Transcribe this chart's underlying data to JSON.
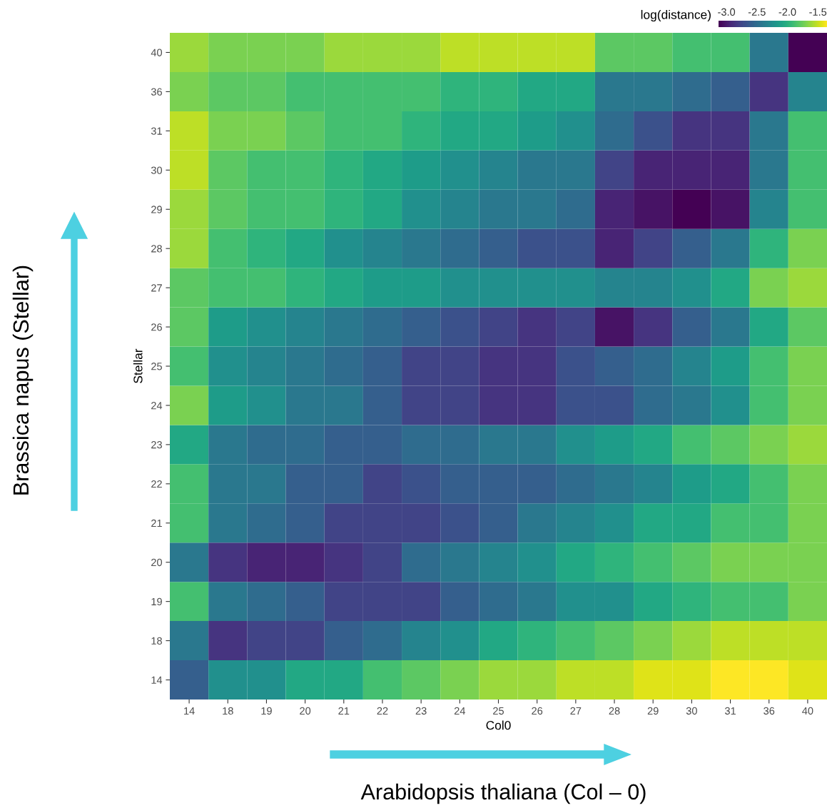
{
  "chart_data": {
    "type": "heatmap",
    "xlabel": "Col0",
    "ylabel": "Stellar",
    "clabel": "log(distance)",
    "categories": [
      "14",
      "18",
      "19",
      "20",
      "21",
      "22",
      "23",
      "24",
      "25",
      "26",
      "27",
      "28",
      "29",
      "30",
      "31",
      "36",
      "40"
    ],
    "y_categories": [
      "40",
      "36",
      "31",
      "30",
      "29",
      "28",
      "27",
      "26",
      "25",
      "24",
      "23",
      "22",
      "21",
      "20",
      "19",
      "18",
      "14"
    ],
    "cells": [
      [
        -1.62,
        -1.71,
        -1.71,
        -1.71,
        -1.62,
        -1.62,
        -1.62,
        -1.53,
        -1.53,
        -1.53,
        -1.53,
        -1.8,
        -1.8,
        -1.88,
        -1.88,
        -2.42,
        -3.13
      ],
      [
        -1.71,
        -1.8,
        -1.8,
        -1.88,
        -1.88,
        -1.88,
        -1.88,
        -1.97,
        -1.97,
        -2.06,
        -2.06,
        -2.42,
        -2.42,
        -2.51,
        -2.6,
        -2.86,
        -2.33
      ],
      [
        -1.53,
        -1.71,
        -1.71,
        -1.8,
        -1.88,
        -1.88,
        -1.97,
        -2.06,
        -2.06,
        -2.15,
        -2.24,
        -2.51,
        -2.69,
        -2.86,
        -2.86,
        -2.42,
        -1.88
      ],
      [
        -1.53,
        -1.8,
        -1.88,
        -1.88,
        -1.97,
        -2.06,
        -2.15,
        -2.24,
        -2.33,
        -2.42,
        -2.42,
        -2.77,
        -2.95,
        -2.95,
        -2.95,
        -2.42,
        -1.88
      ],
      [
        -1.62,
        -1.8,
        -1.88,
        -1.88,
        -1.97,
        -2.06,
        -2.24,
        -2.33,
        -2.42,
        -2.42,
        -2.51,
        -2.95,
        -3.04,
        -3.13,
        -3.04,
        -2.33,
        -1.88
      ],
      [
        -1.62,
        -1.88,
        -1.97,
        -2.06,
        -2.24,
        -2.33,
        -2.42,
        -2.51,
        -2.6,
        -2.69,
        -2.69,
        -2.95,
        -2.77,
        -2.6,
        -2.42,
        -1.97,
        -1.71
      ],
      [
        -1.8,
        -1.88,
        -1.88,
        -1.97,
        -2.06,
        -2.15,
        -2.15,
        -2.24,
        -2.24,
        -2.24,
        -2.24,
        -2.33,
        -2.33,
        -2.24,
        -2.06,
        -1.71,
        -1.62
      ],
      [
        -1.8,
        -2.15,
        -2.24,
        -2.33,
        -2.42,
        -2.51,
        -2.6,
        -2.69,
        -2.77,
        -2.86,
        -2.77,
        -3.04,
        -2.86,
        -2.6,
        -2.42,
        -2.06,
        -1.8
      ],
      [
        -1.88,
        -2.24,
        -2.33,
        -2.42,
        -2.51,
        -2.6,
        -2.77,
        -2.77,
        -2.86,
        -2.86,
        -2.69,
        -2.6,
        -2.51,
        -2.33,
        -2.15,
        -1.88,
        -1.71
      ],
      [
        -1.71,
        -2.15,
        -2.24,
        -2.42,
        -2.42,
        -2.6,
        -2.77,
        -2.77,
        -2.86,
        -2.86,
        -2.69,
        -2.69,
        -2.51,
        -2.42,
        -2.24,
        -1.88,
        -1.71
      ],
      [
        -2.06,
        -2.42,
        -2.51,
        -2.51,
        -2.6,
        -2.6,
        -2.51,
        -2.51,
        -2.42,
        -2.42,
        -2.24,
        -2.15,
        -2.06,
        -1.88,
        -1.8,
        -1.71,
        -1.62
      ],
      [
        -1.88,
        -2.42,
        -2.42,
        -2.6,
        -2.6,
        -2.77,
        -2.69,
        -2.6,
        -2.6,
        -2.6,
        -2.51,
        -2.42,
        -2.33,
        -2.15,
        -2.06,
        -1.88,
        -1.71
      ],
      [
        -1.88,
        -2.42,
        -2.51,
        -2.6,
        -2.77,
        -2.77,
        -2.77,
        -2.69,
        -2.6,
        -2.42,
        -2.33,
        -2.24,
        -2.06,
        -2.06,
        -1.88,
        -1.88,
        -1.71
      ],
      [
        -2.42,
        -2.86,
        -2.95,
        -2.95,
        -2.86,
        -2.77,
        -2.51,
        -2.42,
        -2.33,
        -2.24,
        -2.06,
        -1.97,
        -1.88,
        -1.8,
        -1.71,
        -1.71,
        -1.71
      ],
      [
        -1.88,
        -2.42,
        -2.51,
        -2.6,
        -2.77,
        -2.77,
        -2.77,
        -2.6,
        -2.51,
        -2.42,
        -2.24,
        -2.24,
        -2.06,
        -1.97,
        -1.88,
        -1.88,
        -1.71
      ],
      [
        -2.42,
        -2.86,
        -2.77,
        -2.77,
        -2.6,
        -2.51,
        -2.33,
        -2.24,
        -2.06,
        -1.97,
        -1.88,
        -1.8,
        -1.71,
        -1.62,
        -1.53,
        -1.53,
        -1.53
      ],
      [
        -2.6,
        -2.24,
        -2.24,
        -2.06,
        -2.06,
        -1.88,
        -1.8,
        -1.71,
        -1.62,
        -1.62,
        -1.53,
        -1.53,
        -1.44,
        -1.44,
        -1.35,
        -1.35,
        -1.44
      ]
    ],
    "clim": [
      -3.13,
      -1.35
    ],
    "cticks": [
      {
        "value": -3.0,
        "label": "-3.0"
      },
      {
        "value": -2.5,
        "label": "-2.5"
      },
      {
        "value": -2.0,
        "label": "-2.0"
      },
      {
        "value": -1.5,
        "label": "-1.5"
      }
    ],
    "annotations": [
      "Brassica napus (Stellar)",
      "Arabidopsis thaliana (Col – 0)"
    ]
  }
}
